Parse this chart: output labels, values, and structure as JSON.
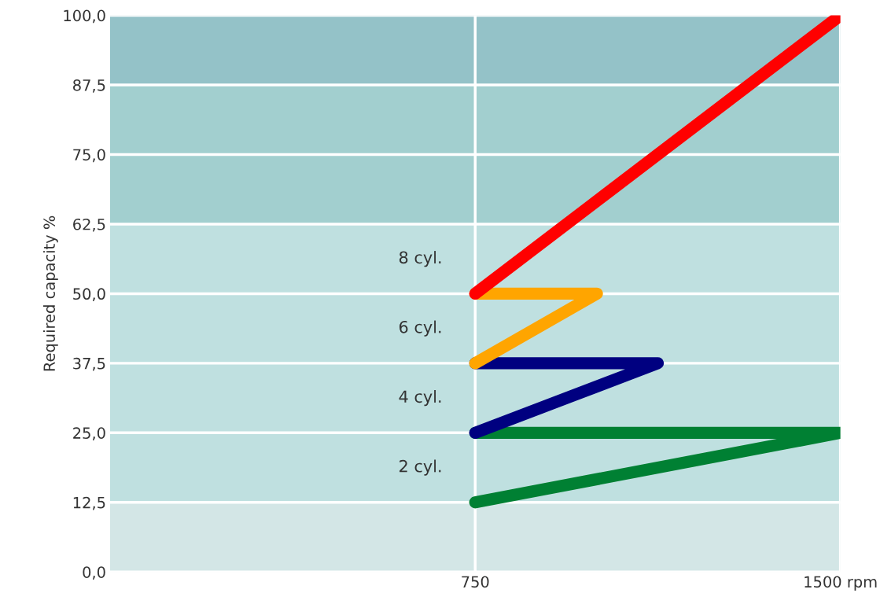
{
  "chart_data": {
    "type": "line",
    "ylabel": "Required capacity %",
    "xlim": [
      0,
      1500
    ],
    "xticks": [
      750,
      {
        "value": 1500,
        "label": "1500 rpm"
      }
    ],
    "ylim": [
      0,
      100
    ],
    "yticks": [
      {
        "value": 0,
        "label": "0,0"
      },
      {
        "value": 12.5,
        "label": "12,5"
      },
      {
        "value": 25,
        "label": "25,0"
      },
      {
        "value": 37.5,
        "label": "37,5"
      },
      {
        "value": 50,
        "label": "50,0"
      },
      {
        "value": 62.5,
        "label": "62,5"
      },
      {
        "value": 75,
        "label": "75,0"
      },
      {
        "value": 87.5,
        "label": "87,5"
      },
      {
        "value": 100,
        "label": "100,0"
      }
    ],
    "grid": true,
    "marker": "none",
    "line_style": "solid",
    "bands": [
      {
        "axis": "y",
        "from": 0,
        "to": 12.5,
        "color": "#d3e6e6"
      },
      {
        "axis": "y",
        "from": 12.5,
        "to": 62.5,
        "color": "#bfe0e0"
      },
      {
        "axis": "y",
        "from": 62.5,
        "to": 87.5,
        "color": "#a2cfcf"
      },
      {
        "axis": "y",
        "from": 87.5,
        "to": 100,
        "color": "#94c2c8"
      }
    ],
    "series": [
      {
        "name": "2 cyl.",
        "color": "#008033",
        "x": [
          750,
          1500,
          750
        ],
        "values": [
          12.5,
          25,
          25
        ]
      },
      {
        "name": "4 cyl.",
        "color": "#000080",
        "x": [
          750,
          1125,
          750
        ],
        "values": [
          25,
          37.5,
          37.5
        ]
      },
      {
        "name": "6 cyl.",
        "color": "#ffa500",
        "x": [
          750,
          1000,
          750
        ],
        "values": [
          37.5,
          50,
          50
        ]
      },
      {
        "name": "8 cyl.",
        "color": "#ff0000",
        "x": [
          750,
          1500
        ],
        "values": [
          50,
          100
        ]
      }
    ]
  }
}
